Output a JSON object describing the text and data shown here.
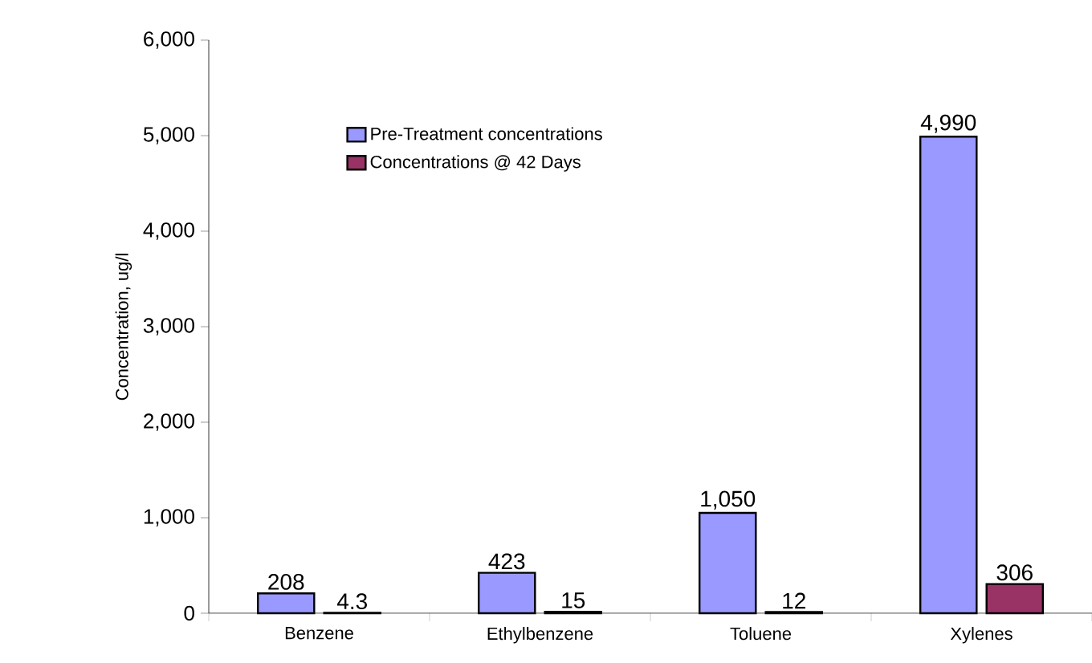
{
  "chart_data": {
    "type": "bar",
    "ylabel": "Concentration, ug/l",
    "categories": [
      "Benzene",
      "Ethylbenzene",
      "Toluene",
      "Xylenes"
    ],
    "series": [
      {
        "name": "Pre-Treatment concentrations",
        "color": "#9999ff",
        "values": [
          208,
          423,
          1050,
          4990
        ],
        "value_labels": [
          "208",
          "423",
          "1,050",
          "4,990"
        ]
      },
      {
        "name": "Concentrations @ 42 Days",
        "color": "#993366",
        "values": [
          4.3,
          15,
          12,
          306
        ],
        "value_labels": [
          "4.3",
          "15",
          "12",
          "306"
        ]
      }
    ],
    "ylim": [
      0,
      6000
    ],
    "yticks": [
      {
        "value": 0,
        "label": "0"
      },
      {
        "value": 1000,
        "label": "1,000"
      },
      {
        "value": 2000,
        "label": "2,000"
      },
      {
        "value": 3000,
        "label": "3,000"
      },
      {
        "value": 4000,
        "label": "4,000"
      },
      {
        "value": 5000,
        "label": "5,000"
      },
      {
        "value": 6000,
        "label": "6,000"
      }
    ],
    "grid": false,
    "legend": "top"
  }
}
